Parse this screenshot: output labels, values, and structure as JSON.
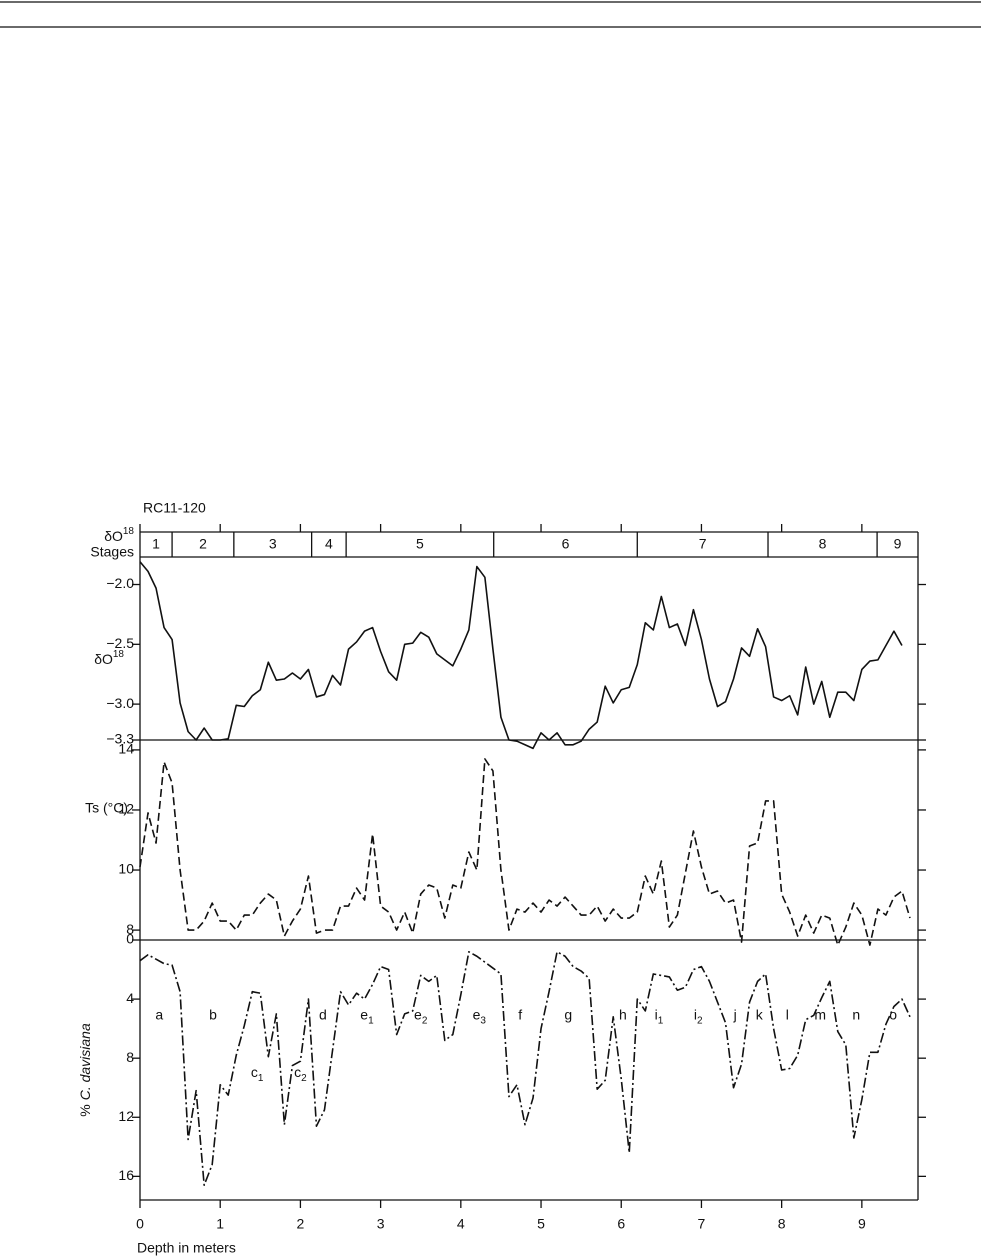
{
  "chart_data": [
    {
      "type": "line",
      "title": "RC11-120",
      "stages": {
        "label": {
          "text": "δO",
          "sup": "18",
          "line2": "Stages"
        },
        "names": [
          "1",
          "2",
          "3",
          "4",
          "5",
          "6",
          "7",
          "8",
          "9"
        ],
        "bounds": [
          0.4,
          1.17,
          2.14,
          2.57,
          4.41,
          6.2,
          7.83,
          9.19
        ]
      },
      "ylabel": {
        "text": "δO",
        "sup": "18"
      },
      "x": [
        0,
        0.1,
        0.2,
        0.3,
        0.4,
        0.5,
        0.6,
        0.7,
        0.8,
        0.9,
        1,
        1.1,
        1.2,
        1.3,
        1.4,
        1.5,
        1.6,
        1.7,
        1.8,
        1.9,
        2,
        2.1,
        2.2,
        2.3,
        2.4,
        2.5,
        2.6,
        2.7,
        2.8,
        2.9,
        3,
        3.1,
        3.2,
        3.3,
        3.4,
        3.5,
        3.6,
        3.7,
        3.8,
        3.9,
        4,
        4.1,
        4.2,
        4.3,
        4.4,
        4.5,
        4.6,
        4.7,
        4.8,
        4.9,
        5,
        5.1,
        5.2,
        5.3,
        5.4,
        5.5,
        5.6,
        5.7,
        5.8,
        5.9,
        6,
        6.1,
        6.2,
        6.3,
        6.4,
        6.5,
        6.6,
        6.7,
        6.8,
        6.9,
        7,
        7.1,
        7.2,
        7.3,
        7.4,
        7.5,
        7.6,
        7.7,
        7.8,
        7.9,
        8,
        8.1,
        8.2,
        8.3,
        8.4,
        8.5,
        8.6,
        8.7,
        8.8,
        8.9,
        9,
        9.1,
        9.2,
        9.3,
        9.4,
        9.5
      ],
      "values": [
        -1.81,
        -1.89,
        -2.03,
        -2.36,
        -2.46,
        -2.99,
        -3.23,
        -3.3,
        -3.2,
        -3.3,
        -3.3,
        -3.29,
        -3.01,
        -3.02,
        -2.93,
        -2.88,
        -2.65,
        -2.8,
        -2.79,
        -2.74,
        -2.79,
        -2.71,
        -2.94,
        -2.92,
        -2.76,
        -2.84,
        -2.54,
        -2.48,
        -2.39,
        -2.36,
        -2.56,
        -2.73,
        -2.8,
        -2.5,
        -2.49,
        -2.4,
        -2.44,
        -2.58,
        -2.63,
        -2.68,
        -2.54,
        -2.38,
        -1.85,
        -1.94,
        -2.54,
        -3.11,
        -3.3,
        -3.31,
        -3.34,
        -3.37,
        -3.24,
        -3.3,
        -3.24,
        -3.34,
        -3.34,
        -3.31,
        -3.21,
        -3.15,
        -2.85,
        -2.99,
        -2.88,
        -2.86,
        -2.67,
        -2.32,
        -2.38,
        -2.1,
        -2.36,
        -2.33,
        -2.51,
        -2.21,
        -2.46,
        -2.79,
        -3.02,
        -2.98,
        -2.79,
        -2.53,
        -2.6,
        -2.37,
        -2.52,
        -2.94,
        -2.97,
        -2.93,
        -3.09,
        -2.69,
        -3.0,
        -2.81,
        -3.11,
        -2.9,
        -2.9,
        -2.97,
        -2.71,
        -2.64,
        -2.63,
        -2.51,
        -2.39,
        -2.51
      ],
      "color": "#111111",
      "line_style": "solid",
      "xlim": [
        0,
        9.7
      ],
      "xticks": [
        0,
        1,
        2,
        3,
        4,
        5,
        6,
        7,
        8,
        9
      ],
      "ylim": [
        -3.3,
        -1.77
      ],
      "yticks": [
        {
          "value": -2.0,
          "label": "−2.0"
        },
        {
          "value": -2.5,
          "label": "−2.5"
        },
        {
          "value": -3.0,
          "label": "−3.0"
        },
        {
          "value": -3.3,
          "label": "−3.3"
        }
      ]
    },
    {
      "type": "line",
      "ylabel": "Ts (°C)",
      "x": [
        0,
        0.1,
        0.2,
        0.3,
        0.4,
        0.5,
        0.6,
        0.7,
        0.8,
        0.9,
        1,
        1.1,
        1.2,
        1.3,
        1.4,
        1.5,
        1.6,
        1.7,
        1.8,
        1.9,
        2,
        2.1,
        2.2,
        2.3,
        2.4,
        2.5,
        2.6,
        2.7,
        2.8,
        2.9,
        3,
        3.1,
        3.2,
        3.3,
        3.4,
        3.5,
        3.6,
        3.7,
        3.8,
        3.9,
        4,
        4.1,
        4.2,
        4.3,
        4.4,
        4.5,
        4.6,
        4.7,
        4.8,
        4.9,
        5,
        5.1,
        5.2,
        5.3,
        5.4,
        5.5,
        5.6,
        5.7,
        5.8,
        5.9,
        6,
        6.1,
        6.2,
        6.3,
        6.4,
        6.5,
        6.6,
        6.7,
        6.8,
        6.9,
        7,
        7.1,
        7.2,
        7.3,
        7.4,
        7.5,
        7.6,
        7.7,
        7.8,
        7.9,
        8,
        8.1,
        8.2,
        8.3,
        8.4,
        8.5,
        8.6,
        8.7,
        8.8,
        8.9,
        9,
        9.1,
        9.2,
        9.3,
        9.4,
        9.5,
        9.6
      ],
      "values": [
        10.1,
        11.9,
        10.9,
        13.6,
        12.9,
        10.0,
        8.0,
        8.0,
        8.3,
        8.9,
        8.3,
        8.3,
        8.0,
        8.5,
        8.5,
        8.9,
        9.2,
        9.0,
        7.8,
        8.3,
        8.7,
        9.8,
        7.9,
        8.0,
        8.0,
        8.8,
        8.8,
        9.4,
        9.0,
        11.2,
        8.8,
        8.6,
        8.0,
        8.6,
        7.9,
        9.2,
        9.5,
        9.4,
        8.4,
        9.5,
        9.4,
        10.6,
        10.0,
        13.7,
        13.3,
        10.0,
        8.0,
        8.7,
        8.6,
        8.9,
        8.6,
        9.0,
        8.8,
        9.1,
        8.8,
        8.5,
        8.5,
        8.8,
        8.3,
        8.7,
        8.4,
        8.4,
        8.6,
        9.8,
        9.2,
        10.3,
        8.1,
        8.5,
        9.9,
        11.3,
        10.1,
        9.2,
        9.3,
        8.9,
        9.0,
        7.6,
        10.8,
        10.9,
        12.3,
        12.3,
        9.2,
        8.6,
        7.8,
        8.5,
        7.9,
        8.5,
        8.4,
        7.5,
        8.1,
        8.9,
        8.5,
        7.5,
        8.7,
        8.5,
        9.1,
        9.3,
        8.4
      ],
      "color": "#111111",
      "line_style": "dashed",
      "xlim": [
        0,
        9.7
      ],
      "ylim": [
        7.67,
        14.33
      ],
      "yticks": [
        8,
        10,
        12,
        14
      ]
    },
    {
      "type": "line",
      "ylabel": {
        "prefix": "%",
        "species": "C. davisiana"
      },
      "xlabel": "Depth in meters",
      "x": [
        0,
        0.1,
        0.2,
        0.3,
        0.4,
        0.5,
        0.6,
        0.7,
        0.8,
        0.9,
        1,
        1.1,
        1.2,
        1.3,
        1.4,
        1.5,
        1.6,
        1.7,
        1.8,
        1.9,
        2,
        2.1,
        2.2,
        2.3,
        2.4,
        2.5,
        2.6,
        2.7,
        2.8,
        2.9,
        3,
        3.1,
        3.2,
        3.3,
        3.4,
        3.5,
        3.6,
        3.7,
        3.8,
        3.9,
        4,
        4.1,
        4.2,
        4.3,
        4.4,
        4.5,
        4.6,
        4.7,
        4.8,
        4.9,
        5,
        5.1,
        5.2,
        5.3,
        5.4,
        5.5,
        5.6,
        5.7,
        5.8,
        5.9,
        6,
        6.1,
        6.2,
        6.3,
        6.4,
        6.5,
        6.6,
        6.7,
        6.8,
        6.9,
        7,
        7.1,
        7.2,
        7.3,
        7.4,
        7.5,
        7.6,
        7.7,
        7.8,
        7.9,
        8,
        8.1,
        8.2,
        8.3,
        8.4,
        8.5,
        8.6,
        8.7,
        8.8,
        8.9,
        9,
        9.1,
        9.2,
        9.3,
        9.4,
        9.5,
        9.6
      ],
      "values": [
        1.4,
        1.0,
        1.3,
        1.6,
        1.7,
        3.5,
        13.5,
        10.2,
        16.6,
        15.2,
        9.8,
        10.5,
        7.8,
        5.8,
        3.5,
        3.6,
        7.9,
        5.0,
        12.5,
        8.5,
        8.2,
        4.0,
        12.6,
        11.5,
        7.5,
        3.5,
        4.4,
        3.6,
        4.0,
        3.0,
        1.8,
        2.0,
        6.4,
        5.0,
        4.8,
        2.4,
        2.8,
        2.4,
        6.8,
        6.4,
        3.7,
        0.8,
        1.1,
        1.5,
        1.9,
        2.3,
        10.6,
        9.8,
        12.5,
        10.7,
        6.0,
        3.5,
        0.8,
        1.1,
        1.8,
        2.1,
        2.6,
        10.1,
        9.5,
        5.2,
        9.4,
        14.4,
        4.0,
        4.8,
        2.3,
        2.4,
        2.5,
        3.4,
        3.2,
        2.0,
        1.8,
        2.8,
        4.2,
        5.6,
        10.0,
        8.4,
        4.2,
        2.8,
        2.3,
        6.0,
        8.8,
        8.7,
        7.8,
        5.4,
        5.1,
        3.9,
        2.8,
        6.2,
        7.1,
        13.4,
        10.8,
        7.6,
        7.6,
        5.7,
        4.5,
        4.0,
        5.2
      ],
      "color": "#111111",
      "line_style": "dashdot",
      "xlim": [
        0,
        9.7
      ],
      "xticks": [
        0,
        1,
        2,
        3,
        4,
        5,
        6,
        7,
        8,
        9
      ],
      "ylim": [
        17.6,
        0
      ],
      "yticks": [
        0,
        4,
        8,
        12,
        16
      ],
      "annotations": [
        {
          "text": "a",
          "x": 0.24,
          "y": 5.1
        },
        {
          "text": "b",
          "x": 0.91,
          "y": 5.1
        },
        {
          "text": "c",
          "sub": "1",
          "x": 1.46,
          "y": 9.0
        },
        {
          "text": "c",
          "sub": "2",
          "x": 2.0,
          "y": 9.0
        },
        {
          "text": "d",
          "x": 2.28,
          "y": 5.1
        },
        {
          "text": "e",
          "sub": "1",
          "x": 2.83,
          "y": 5.1
        },
        {
          "text": "e",
          "sub": "2",
          "x": 3.5,
          "y": 5.1
        },
        {
          "text": "e",
          "sub": "3",
          "x": 4.23,
          "y": 5.1
        },
        {
          "text": "f",
          "x": 4.74,
          "y": 5.1
        },
        {
          "text": "g",
          "x": 5.34,
          "y": 5.1
        },
        {
          "text": "h",
          "x": 6.02,
          "y": 5.1
        },
        {
          "text": "i",
          "sub": "1",
          "x": 6.47,
          "y": 5.1
        },
        {
          "text": "i",
          "sub": "2",
          "x": 6.96,
          "y": 5.1
        },
        {
          "text": "j",
          "x": 7.42,
          "y": 5.1
        },
        {
          "text": "k",
          "x": 7.72,
          "y": 5.1
        },
        {
          "text": "l",
          "x": 8.07,
          "y": 5.1
        },
        {
          "text": "m",
          "x": 8.48,
          "y": 5.1
        },
        {
          "text": "n",
          "x": 8.93,
          "y": 5.1
        },
        {
          "text": "o",
          "x": 9.39,
          "y": 5.1
        }
      ]
    }
  ]
}
